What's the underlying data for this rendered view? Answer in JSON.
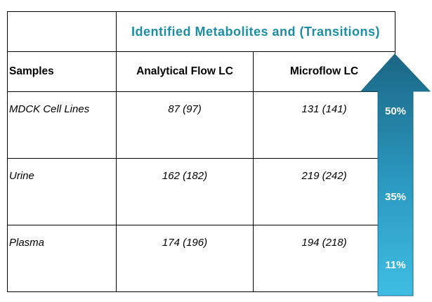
{
  "table": {
    "title": "Identified Metabolites and (Transitions)",
    "header": [
      "Samples",
      "Analytical Flow LC",
      "Microflow LC"
    ],
    "rows": [
      [
        "MDCK Cell Lines",
        "87 (97)",
        "131 (141)"
      ],
      [
        "Urine",
        "162 (182)",
        "219 (242)"
      ],
      [
        "Plasma",
        "174 (196)",
        "194 (218)"
      ]
    ]
  },
  "arrow": {
    "labels": [
      "50%",
      "35%",
      "11%"
    ]
  }
}
